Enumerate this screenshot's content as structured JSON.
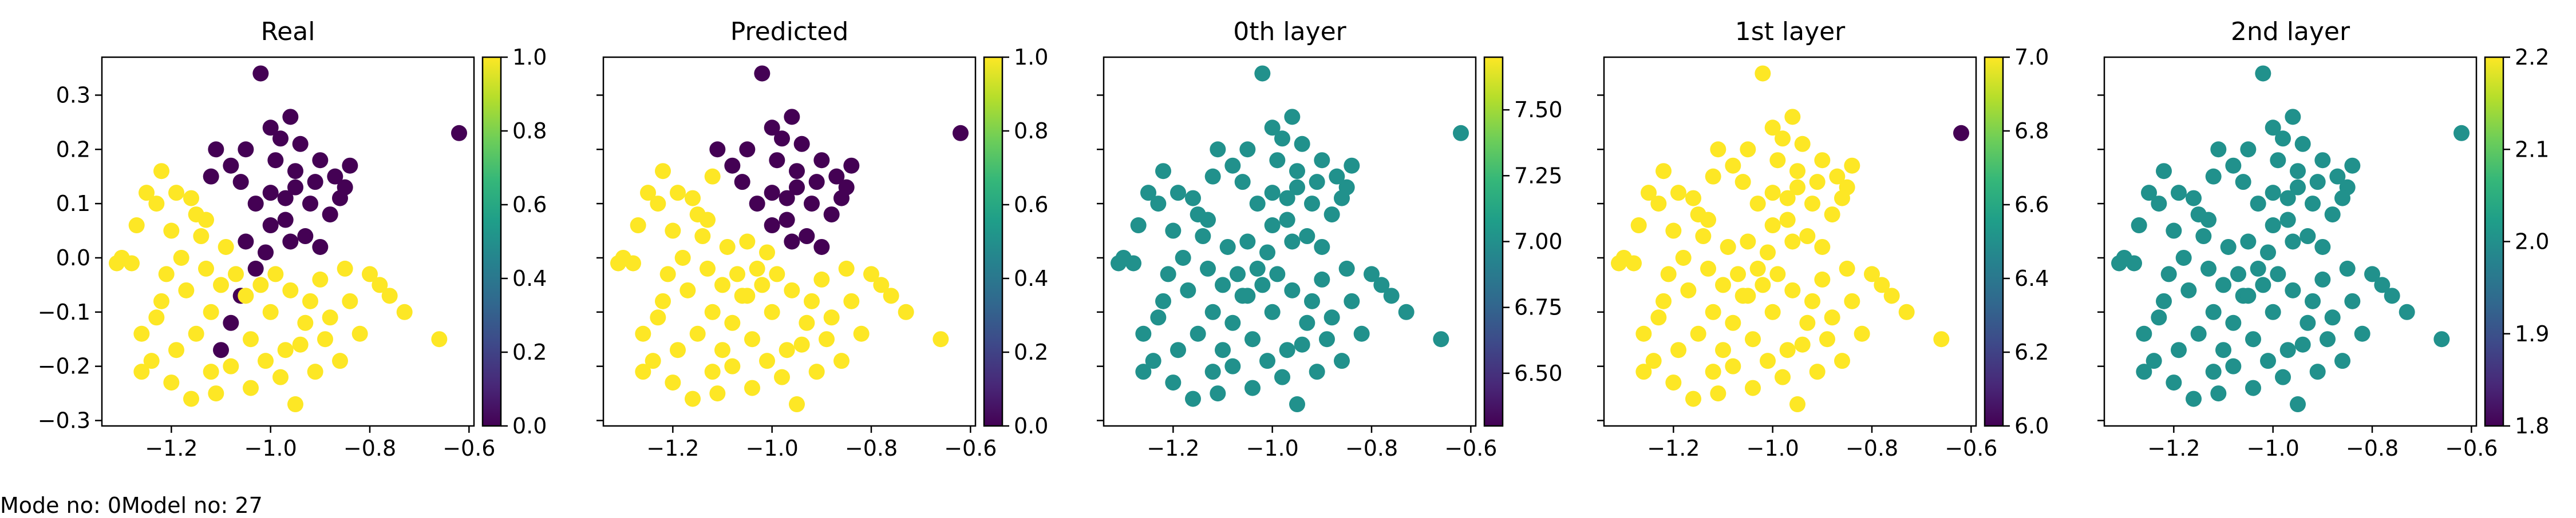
{
  "figure": {
    "caption": "Mode no: 0Model no: 27"
  },
  "chart_data": [
    {
      "type": "scatter",
      "title": "Real",
      "xlim": [
        -1.34,
        -0.59
      ],
      "ylim": [
        -0.31,
        0.37
      ],
      "xticks": [
        -1.2,
        -1.0,
        -0.8,
        -0.6
      ],
      "xticklabels": [
        "−1.2",
        "−1.0",
        "−0.8",
        "−0.6"
      ],
      "yticks": [
        -0.3,
        -0.2,
        -0.1,
        0.0,
        0.1,
        0.2,
        0.3
      ],
      "yticklabels": [
        "−0.3",
        "−0.2",
        "−0.1",
        "0.0",
        "0.1",
        "0.2",
        "0.3"
      ],
      "show_yticklabels": true,
      "colorbar": {
        "ticks": [
          0.0,
          0.2,
          0.4,
          0.6,
          0.8,
          1.0
        ],
        "ticklabels": [
          "0.0",
          "0.2",
          "0.4",
          "0.6",
          "0.8",
          "1.0"
        ],
        "range": [
          0.0,
          1.0
        ]
      },
      "coloring": "real"
    },
    {
      "type": "scatter",
      "title": "Predicted",
      "xlim": [
        -1.34,
        -0.59
      ],
      "ylim": [
        -0.31,
        0.37
      ],
      "xticks": [
        -1.2,
        -1.0,
        -0.8,
        -0.6
      ],
      "xticklabels": [
        "−1.2",
        "−1.0",
        "−0.8",
        "−0.6"
      ],
      "yticks": [
        -0.3,
        -0.2,
        -0.1,
        0.0,
        0.1,
        0.2,
        0.3
      ],
      "show_yticklabels": false,
      "colorbar": {
        "ticks": [
          0.0,
          0.2,
          0.4,
          0.6,
          0.8,
          1.0
        ],
        "ticklabels": [
          "0.0",
          "0.2",
          "0.4",
          "0.6",
          "0.8",
          "1.0"
        ],
        "range": [
          0.0,
          1.0
        ]
      },
      "coloring": "predicted"
    },
    {
      "type": "scatter",
      "title": "0th layer",
      "xlim": [
        -1.34,
        -0.59
      ],
      "ylim": [
        -0.31,
        0.37
      ],
      "xticks": [
        -1.2,
        -1.0,
        -0.8,
        -0.6
      ],
      "xticklabels": [
        "−1.2",
        "−1.0",
        "−0.8",
        "−0.6"
      ],
      "yticks": [
        -0.3,
        -0.2,
        -0.1,
        0.0,
        0.1,
        0.2,
        0.3
      ],
      "show_yticklabels": false,
      "colorbar": {
        "ticks": [
          6.5,
          6.75,
          7.0,
          7.25,
          7.5
        ],
        "ticklabels": [
          "6.50",
          "6.75",
          "7.00",
          "7.25",
          "7.50"
        ],
        "range": [
          6.3,
          7.7
        ]
      },
      "coloring": "constant",
      "color": "#21918c"
    },
    {
      "type": "scatter",
      "title": "1st layer",
      "xlim": [
        -1.34,
        -0.59
      ],
      "ylim": [
        -0.31,
        0.37
      ],
      "xticks": [
        -1.2,
        -1.0,
        -0.8,
        -0.6
      ],
      "xticklabels": [
        "−1.2",
        "−1.0",
        "−0.8",
        "−0.6"
      ],
      "yticks": [
        -0.3,
        -0.2,
        -0.1,
        0.0,
        0.1,
        0.2,
        0.3
      ],
      "show_yticklabels": false,
      "colorbar": {
        "ticks": [
          6.0,
          6.2,
          6.4,
          6.6,
          6.8,
          7.0
        ],
        "ticklabels": [
          "6.0",
          "6.2",
          "6.4",
          "6.6",
          "6.8",
          "7.0"
        ],
        "range": [
          6.0,
          7.0
        ]
      },
      "coloring": "first_layer"
    },
    {
      "type": "scatter",
      "title": "2nd layer",
      "xlim": [
        -1.34,
        -0.59
      ],
      "ylim": [
        -0.31,
        0.37
      ],
      "xticks": [
        -1.2,
        -1.0,
        -0.8,
        -0.6
      ],
      "xticklabels": [
        "−1.2",
        "−1.0",
        "−0.8",
        "−0.6"
      ],
      "yticks": [
        -0.3,
        -0.2,
        -0.1,
        0.0,
        0.1,
        0.2,
        0.3
      ],
      "show_yticklabels": false,
      "colorbar": {
        "ticks": [
          1.8,
          1.9,
          2.0,
          2.1,
          2.2
        ],
        "ticklabels": [
          "1.8",
          "1.9",
          "2.0",
          "2.1",
          "2.2"
        ],
        "range": [
          1.8,
          2.2
        ]
      },
      "coloring": "constant",
      "color": "#21918c"
    }
  ],
  "points": {
    "note_fields": [
      "x",
      "y",
      "real_class",
      "predicted_class"
    ],
    "data": [
      [
        -1.02,
        0.34,
        0,
        0
      ],
      [
        -0.62,
        0.23,
        0,
        0
      ],
      [
        -0.96,
        0.26,
        0,
        0
      ],
      [
        -0.98,
        0.22,
        0,
        0
      ],
      [
        -1.05,
        0.2,
        0,
        0
      ],
      [
        -0.94,
        0.21,
        0,
        0
      ],
      [
        -0.9,
        0.18,
        0,
        0
      ],
      [
        -1.08,
        0.17,
        0,
        0
      ],
      [
        -0.87,
        0.15,
        0,
        0
      ],
      [
        -0.85,
        0.13,
        0,
        0
      ],
      [
        -0.95,
        0.13,
        0,
        0
      ],
      [
        -1.0,
        0.12,
        0,
        0
      ],
      [
        -0.92,
        0.1,
        0,
        0
      ],
      [
        -0.88,
        0.08,
        0,
        0
      ],
      [
        -0.97,
        0.07,
        0,
        0
      ],
      [
        -0.93,
        0.04,
        0,
        0
      ],
      [
        -0.9,
        0.02,
        0,
        0
      ],
      [
        -1.11,
        0.2,
        0,
        0
      ],
      [
        -1.12,
        0.15,
        0,
        1
      ],
      [
        -1.03,
        0.1,
        0,
        0
      ],
      [
        -0.96,
        0.03,
        0,
        0
      ],
      [
        -1.0,
        0.06,
        0,
        0
      ],
      [
        -1.06,
        0.14,
        0,
        0
      ],
      [
        -0.84,
        0.17,
        0,
        0
      ],
      [
        -0.99,
        0.18,
        0,
        0
      ],
      [
        -1.05,
        0.03,
        0,
        1
      ],
      [
        -1.03,
        -0.02,
        0,
        1
      ],
      [
        -1.06,
        -0.07,
        0,
        1
      ],
      [
        -1.08,
        -0.12,
        0,
        1
      ],
      [
        -1.1,
        -0.17,
        0,
        1
      ],
      [
        -1.01,
        0.01,
        0,
        1
      ],
      [
        -0.95,
        0.16,
        0,
        0
      ],
      [
        -0.91,
        0.14,
        0,
        0
      ],
      [
        -1.0,
        0.24,
        0,
        0
      ],
      [
        -0.97,
        0.11,
        0,
        0
      ],
      [
        -0.86,
        0.11,
        0,
        0
      ],
      [
        -1.22,
        0.16,
        1,
        1
      ],
      [
        -1.25,
        0.12,
        1,
        1
      ],
      [
        -1.3,
        0.0,
        1,
        1
      ],
      [
        -1.28,
        -0.01,
        1,
        1
      ],
      [
        -1.2,
        0.05,
        1,
        1
      ],
      [
        -1.15,
        0.08,
        1,
        1
      ],
      [
        -1.18,
        0.0,
        1,
        1
      ],
      [
        -1.13,
        -0.02,
        1,
        1
      ],
      [
        -1.17,
        -0.06,
        1,
        1
      ],
      [
        -1.22,
        -0.08,
        1,
        1
      ],
      [
        -1.26,
        -0.14,
        1,
        1
      ],
      [
        -1.24,
        -0.19,
        1,
        1
      ],
      [
        -1.2,
        -0.23,
        1,
        1
      ],
      [
        -1.16,
        -0.26,
        1,
        1
      ],
      [
        -1.12,
        -0.21,
        1,
        1
      ],
      [
        -1.08,
        -0.2,
        1,
        1
      ],
      [
        -1.04,
        -0.15,
        1,
        1
      ],
      [
        -1.0,
        -0.1,
        1,
        1
      ],
      [
        -0.96,
        -0.06,
        1,
        1
      ],
      [
        -0.9,
        -0.04,
        1,
        1
      ],
      [
        -0.85,
        -0.02,
        1,
        1
      ],
      [
        -0.8,
        -0.03,
        1,
        1
      ],
      [
        -0.76,
        -0.07,
        1,
        1
      ],
      [
        -0.73,
        -0.1,
        1,
        1
      ],
      [
        -0.66,
        -0.15,
        1,
        1
      ],
      [
        -0.88,
        -0.11,
        1,
        1
      ],
      [
        -0.94,
        -0.16,
        1,
        1
      ],
      [
        -0.98,
        -0.22,
        1,
        1
      ],
      [
        -0.95,
        -0.27,
        1,
        1
      ],
      [
        -0.91,
        -0.21,
        1,
        1
      ],
      [
        -0.86,
        -0.19,
        1,
        1
      ],
      [
        -0.82,
        -0.14,
        1,
        1
      ],
      [
        -1.14,
        0.04,
        1,
        1
      ],
      [
        -1.09,
        0.02,
        1,
        1
      ],
      [
        -1.1,
        -0.05,
        1,
        1
      ],
      [
        -1.05,
        -0.07,
        1,
        1
      ],
      [
        -1.02,
        -0.05,
        1,
        1
      ],
      [
        -0.99,
        -0.03,
        1,
        1
      ],
      [
        -1.21,
        -0.03,
        1,
        1
      ],
      [
        -1.27,
        0.06,
        1,
        1
      ],
      [
        -1.23,
        0.1,
        1,
        1
      ],
      [
        -1.19,
        0.12,
        1,
        1
      ],
      [
        -1.16,
        0.11,
        1,
        1
      ],
      [
        -1.12,
        -0.1,
        1,
        1
      ],
      [
        -1.15,
        -0.14,
        1,
        1
      ],
      [
        -1.19,
        -0.17,
        1,
        1
      ],
      [
        -0.92,
        -0.08,
        1,
        1
      ],
      [
        -0.89,
        -0.15,
        1,
        1
      ],
      [
        -0.84,
        -0.08,
        1,
        1
      ],
      [
        -1.01,
        -0.19,
        1,
        1
      ],
      [
        -1.04,
        -0.24,
        1,
        1
      ],
      [
        -1.11,
        -0.25,
        1,
        1
      ],
      [
        -1.26,
        -0.21,
        1,
        1
      ],
      [
        -1.31,
        -0.01,
        1,
        1
      ],
      [
        -0.97,
        -0.17,
        1,
        1
      ],
      [
        -1.13,
        0.07,
        1,
        1
      ],
      [
        -1.07,
        -0.03,
        1,
        1
      ],
      [
        -1.23,
        -0.11,
        1,
        1
      ],
      [
        -0.93,
        -0.12,
        1,
        1
      ],
      [
        -0.78,
        -0.05,
        1,
        1
      ]
    ]
  }
}
